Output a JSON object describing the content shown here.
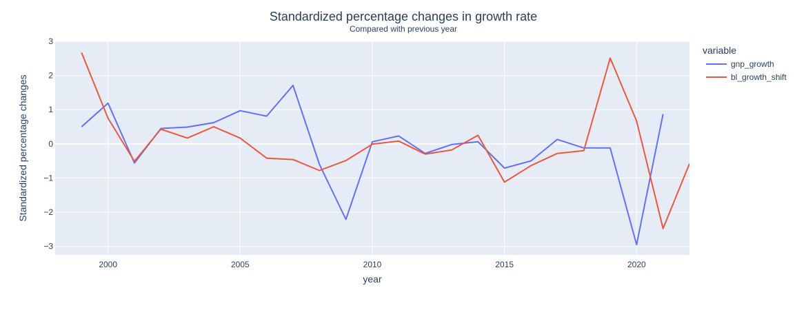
{
  "chart_data": {
    "type": "line",
    "title": "Standardized percentage changes in growth rate",
    "subtitle": "Compared with previous year",
    "xlabel": "year",
    "ylabel": "Standardized percentage changes",
    "xlim": [
      1998,
      2022
    ],
    "ylim": [
      -3.25,
      3
    ],
    "x_ticks": [
      2000,
      2005,
      2010,
      2015,
      2020
    ],
    "y_ticks": [
      3,
      2,
      1,
      0,
      -1,
      -2,
      -3
    ],
    "y_tick_labels": [
      "3",
      "2",
      "1",
      "0",
      "−1",
      "−2",
      "−3"
    ],
    "grid": true,
    "legend": {
      "title": "variable",
      "placement": "right"
    },
    "series": [
      {
        "name": "gnp_growth",
        "color": "#636efa",
        "x": [
          1999,
          2000,
          2001,
          2002,
          2003,
          2004,
          2005,
          2006,
          2007,
          2008,
          2009,
          2010,
          2011,
          2012,
          2013,
          2014,
          2015,
          2016,
          2017,
          2018,
          2019,
          2020,
          2021
        ],
        "y": [
          0.5,
          1.19,
          -0.56,
          0.45,
          0.49,
          0.62,
          0.97,
          0.81,
          1.71,
          -0.6,
          -2.21,
          0.06,
          0.23,
          -0.28,
          -0.02,
          0.06,
          -0.71,
          -0.5,
          0.13,
          -0.12,
          -0.12,
          -2.95,
          0.87
        ]
      },
      {
        "name": "bl_growth_shift",
        "color": "#ef553b",
        "x": [
          1999,
          2000,
          2001,
          2002,
          2003,
          2004,
          2005,
          2006,
          2007,
          2008,
          2009,
          2010,
          2011,
          2012,
          2013,
          2014,
          2015,
          2016,
          2017,
          2018,
          2019,
          2020,
          2021,
          2022
        ],
        "y": [
          2.67,
          0.75,
          -0.51,
          0.43,
          0.17,
          0.5,
          0.17,
          -0.42,
          -0.46,
          -0.78,
          -0.49,
          -0.01,
          0.08,
          -0.3,
          -0.18,
          0.25,
          -1.12,
          -0.64,
          -0.28,
          -0.2,
          2.51,
          0.67,
          -2.48,
          -0.58
        ]
      }
    ]
  }
}
